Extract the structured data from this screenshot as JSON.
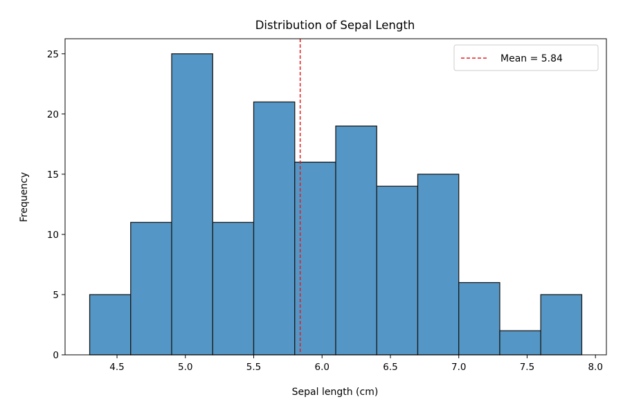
{
  "chart_data": {
    "type": "bar",
    "title": "Distribution of Sepal Length",
    "xlabel": "Sepal length (cm)",
    "ylabel": "Frequency",
    "bins": [
      {
        "start": 4.3,
        "end": 4.6,
        "count": 5
      },
      {
        "start": 4.6,
        "end": 4.9,
        "count": 11
      },
      {
        "start": 4.9,
        "end": 5.2,
        "count": 25
      },
      {
        "start": 5.2,
        "end": 5.5,
        "count": 11
      },
      {
        "start": 5.5,
        "end": 5.8,
        "count": 21
      },
      {
        "start": 5.8,
        "end": 6.1,
        "count": 16
      },
      {
        "start": 6.1,
        "end": 6.4,
        "count": 19
      },
      {
        "start": 6.4,
        "end": 6.7,
        "count": 14
      },
      {
        "start": 6.7,
        "end": 7.0,
        "count": 15
      },
      {
        "start": 7.0,
        "end": 7.3,
        "count": 6
      },
      {
        "start": 7.3,
        "end": 7.6,
        "count": 2
      },
      {
        "start": 7.6,
        "end": 7.9,
        "count": 5
      }
    ],
    "xlim": [
      4.12,
      8.08
    ],
    "ylim": [
      0,
      26.25
    ],
    "xticks": [
      4.5,
      5.0,
      5.5,
      6.0,
      6.5,
      7.0,
      7.5,
      8.0
    ],
    "xtick_labels": [
      "4.5",
      "5.0",
      "5.5",
      "6.0",
      "6.5",
      "7.0",
      "7.5",
      "8.0"
    ],
    "yticks": [
      0,
      5,
      10,
      15,
      20,
      25
    ],
    "ytick_labels": [
      "0",
      "5",
      "10",
      "15",
      "20",
      "25"
    ],
    "mean_line": {
      "value": 5.84,
      "label": "Mean = 5.84",
      "color": "#e41a1c",
      "style": "dashed"
    },
    "bar_color": "#5497c6",
    "bar_edge_color": "#1a1a1a",
    "grid": false,
    "legend": {
      "placement": "top-right",
      "entries": [
        "Mean = 5.84"
      ]
    }
  }
}
